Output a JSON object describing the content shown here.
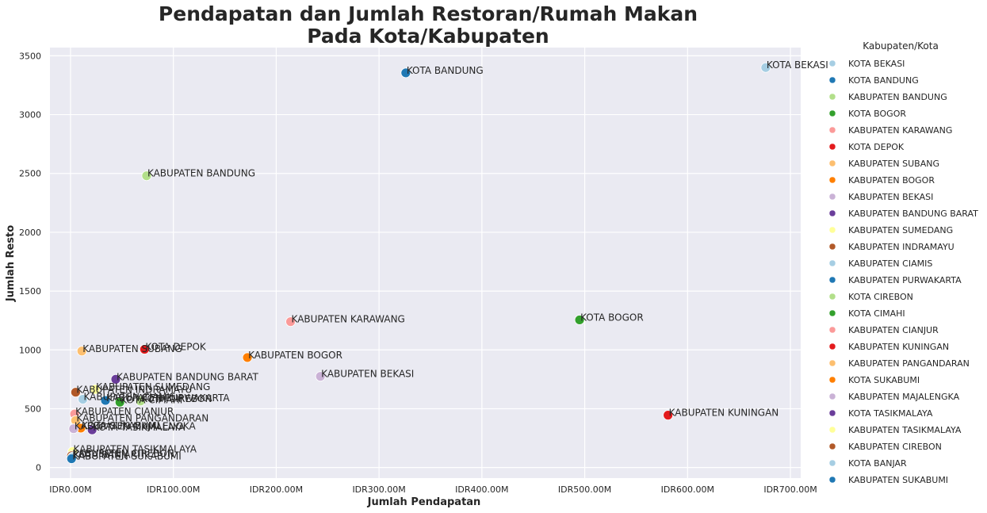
{
  "chart_data": {
    "type": "scatter",
    "title_line1": "Pendapatan dan Jumlah Restoran/Rumah Makan",
    "title_line2": "Pada Kota/Kabupaten",
    "xlabel": "Jumlah Pendapatan",
    "ylabel": "Jumlah Resto",
    "xlim": [
      -20,
      710
    ],
    "ylim": [
      -90,
      3570
    ],
    "x_unit": "IDR millions",
    "x_ticks": [
      0,
      100,
      200,
      300,
      400,
      500,
      600,
      700
    ],
    "x_tick_labels": [
      "IDR0.00M",
      "IDR100.00M",
      "IDR200.00M",
      "IDR300.00M",
      "IDR400.00M",
      "IDR500.00M",
      "IDR600.00M",
      "IDR700.00M"
    ],
    "y_ticks": [
      0,
      500,
      1000,
      1500,
      2000,
      2500,
      3000,
      3500
    ],
    "y_tick_labels": [
      "0",
      "500",
      "1000",
      "1500",
      "2000",
      "2500",
      "3000",
      "3500"
    ],
    "grid": true,
    "background": "#eaeaf2",
    "legend_title": "Kabupaten/Kota",
    "legend_position": "right outside",
    "points": [
      {
        "name": "KOTA BEKASI",
        "x": 676,
        "y": 3400,
        "color": "#a6cee3"
      },
      {
        "name": "KOTA BANDUNG",
        "x": 326,
        "y": 3355,
        "color": "#1f78b4"
      },
      {
        "name": "KABUPATEN BANDUNG",
        "x": 74,
        "y": 2480,
        "color": "#b2df8a"
      },
      {
        "name": "KOTA BOGOR",
        "x": 495,
        "y": 1255,
        "color": "#33a02c"
      },
      {
        "name": "KABUPATEN KARAWANG",
        "x": 214,
        "y": 1240,
        "color": "#fb9a99"
      },
      {
        "name": "KOTA DEPOK",
        "x": 72,
        "y": 1005,
        "color": "#e31a1c"
      },
      {
        "name": "KABUPATEN SUBANG",
        "x": 11,
        "y": 990,
        "color": "#fdbf6f"
      },
      {
        "name": "KABUPATEN BOGOR",
        "x": 172,
        "y": 935,
        "color": "#ff7f00"
      },
      {
        "name": "KABUPATEN BEKASI",
        "x": 243,
        "y": 775,
        "color": "#cab2d6"
      },
      {
        "name": "KABUPATEN BANDUNG BARAT",
        "x": 44,
        "y": 750,
        "color": "#6a3d9a"
      },
      {
        "name": "KABUPATEN SUMEDANG",
        "x": 24,
        "y": 665,
        "color": "#ffff99"
      },
      {
        "name": "KABUPATEN INDRAMAYU",
        "x": 5,
        "y": 640,
        "color": "#b15928"
      },
      {
        "name": "KABUPATEN CIAMIS",
        "x": 12,
        "y": 580,
        "color": "#a6cee3"
      },
      {
        "name": "KABUPATEN PURWAKARTA",
        "x": 34,
        "y": 570,
        "color": "#1f78b4"
      },
      {
        "name": "KOTA CIREBON",
        "x": 68,
        "y": 565,
        "color": "#b2df8a"
      },
      {
        "name": "KOTA CIMAHI",
        "x": 48,
        "y": 555,
        "color": "#33a02c"
      },
      {
        "name": "KABUPATEN CIANJUR",
        "x": 4,
        "y": 455,
        "color": "#fb9a99"
      },
      {
        "name": "KABUPATEN KUNINGAN",
        "x": 581,
        "y": 445,
        "color": "#e31a1c"
      },
      {
        "name": "KABUPATEN PANGANDARAN",
        "x": 5,
        "y": 400,
        "color": "#fdbf6f"
      },
      {
        "name": "KOTA SUKABUMI",
        "x": 10,
        "y": 335,
        "color": "#ff7f00"
      },
      {
        "name": "KABUPATEN MAJALENGKA",
        "x": 3,
        "y": 330,
        "color": "#cab2d6"
      },
      {
        "name": "KOTA TASIKMALAYA",
        "x": 21,
        "y": 320,
        "color": "#6a3d9a"
      },
      {
        "name": "KABUPATEN TASIKMALAYA",
        "x": 2,
        "y": 135,
        "color": "#ffff99"
      },
      {
        "name": "KABUPATEN CIREBON",
        "x": 1,
        "y": 100,
        "color": "#b15928"
      },
      {
        "name": "KOTA BANJAR",
        "x": 2,
        "y": 90,
        "color": "#a6cee3"
      },
      {
        "name": "KABUPATEN SUKABUMI",
        "x": 1,
        "y": 75,
        "color": "#1f78b4"
      }
    ]
  }
}
